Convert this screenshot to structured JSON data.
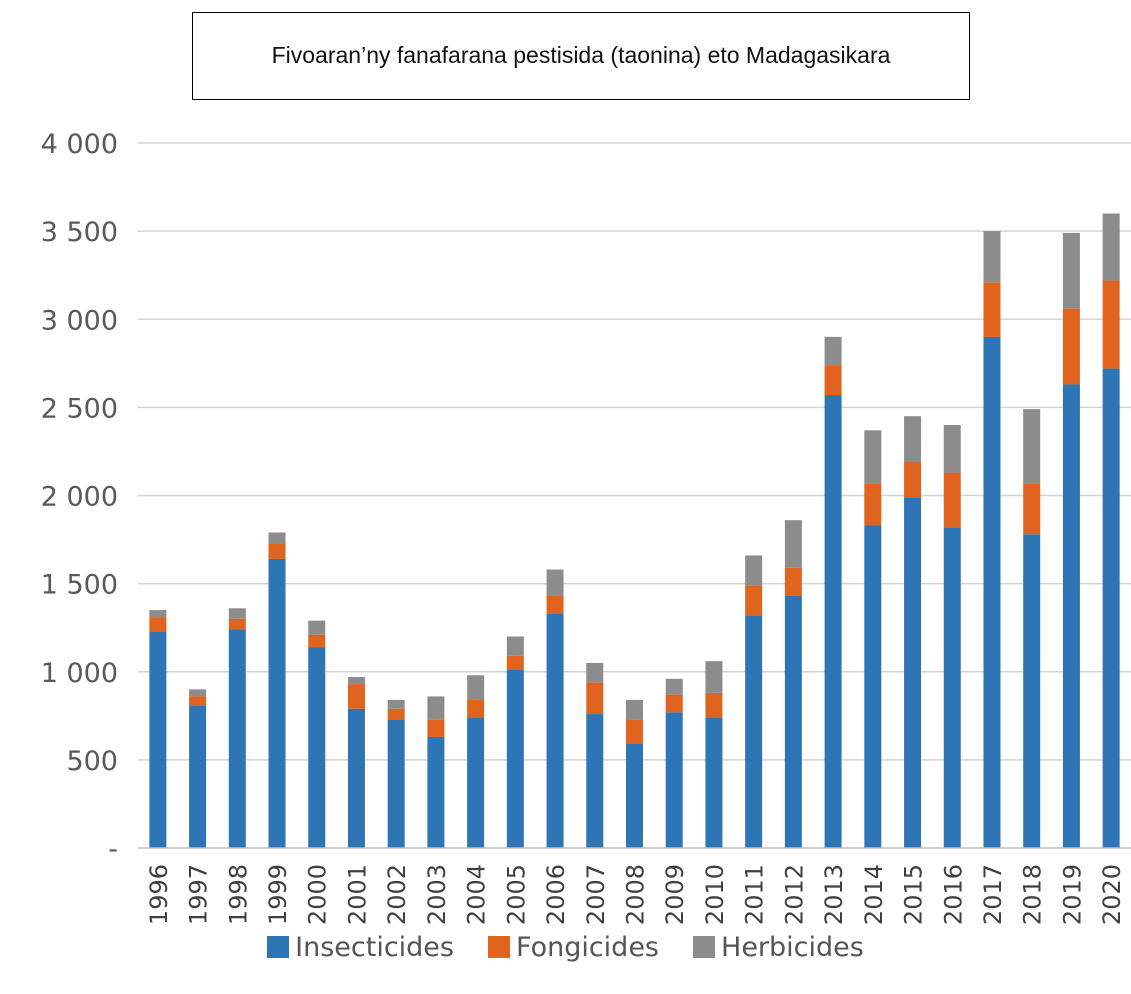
{
  "chart_data": {
    "type": "bar",
    "stacked": true,
    "title": "Fivoaran’ny fanafarana pestisida (taonina) eto Madagasikara",
    "categories": [
      "1996",
      "1997",
      "1998",
      "1999",
      "2000",
      "2001",
      "2002",
      "2003",
      "2004",
      "2005",
      "2006",
      "2007",
      "2008",
      "2009",
      "2010",
      "2011",
      "2012",
      "2013",
      "2014",
      "2015",
      "2016",
      "2017",
      "2018",
      "2019",
      "2020"
    ],
    "series": [
      {
        "name": "Insecticides",
        "color": "#2e75b6",
        "values": [
          1230,
          810,
          1240,
          1640,
          1140,
          790,
          730,
          630,
          740,
          1010,
          1330,
          760,
          590,
          770,
          740,
          1320,
          1430,
          2570,
          1830,
          1990,
          1820,
          2900,
          1780,
          2630,
          2720
        ]
      },
      {
        "name": "Fongicides",
        "color": "#e0631e",
        "values": [
          80,
          50,
          60,
          90,
          70,
          140,
          60,
          100,
          100,
          80,
          100,
          180,
          140,
          100,
          140,
          170,
          160,
          170,
          240,
          200,
          310,
          310,
          290,
          430,
          500
        ]
      },
      {
        "name": "Herbicides",
        "color": "#8c8c8c",
        "values": [
          40,
          40,
          60,
          60,
          80,
          40,
          50,
          130,
          140,
          110,
          150,
          110,
          110,
          90,
          180,
          170,
          270,
          160,
          300,
          260,
          270,
          290,
          420,
          430,
          380
        ]
      }
    ],
    "ylim": [
      0,
      4000
    ],
    "yticks": [
      0,
      500,
      1000,
      1500,
      2000,
      2500,
      3000,
      3500,
      4000
    ],
    "ytick_labels": [
      "-",
      "500",
      "1 000",
      "1 500",
      "2 000",
      "2 500",
      "3 000",
      "3 500",
      "4 000"
    ],
    "grid": true,
    "legend_position": "bottom"
  }
}
